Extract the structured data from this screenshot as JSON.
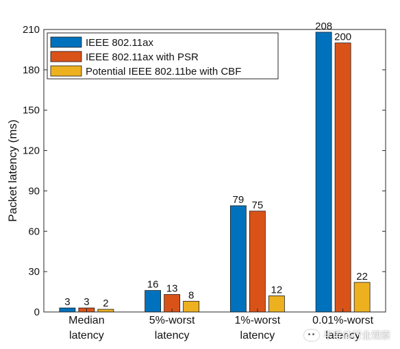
{
  "chart_data": {
    "type": "bar",
    "categories": [
      [
        "Median",
        "latency"
      ],
      [
        "5%-worst",
        "latency"
      ],
      [
        "1%-worst",
        "latency"
      ],
      [
        "0.01%-worst",
        "latency"
      ]
    ],
    "series": [
      {
        "name": "IEEE 802.11ax",
        "color": "#0072BD",
        "values": [
          3,
          16,
          79,
          208
        ]
      },
      {
        "name": "IEEE 802.11ax with PSR",
        "color": "#D95319",
        "values": [
          3,
          13,
          75,
          200
        ]
      },
      {
        "name": "Potential IEEE 802.11be with CBF",
        "color": "#EDB120",
        "values": [
          2,
          8,
          12,
          22
        ]
      }
    ],
    "data_labels": [
      [
        "3",
        "16",
        "79",
        "208"
      ],
      [
        "3",
        "13",
        "75",
        "200"
      ],
      [
        "2",
        "8",
        "12",
        "22"
      ]
    ],
    "ylabel": "Packet latency (ms)",
    "xlabel": "",
    "ylim": [
      0,
      210
    ],
    "yticks": [
      0,
      30,
      60,
      90,
      120,
      150,
      180,
      210
    ],
    "grid": false,
    "legend_position": "top-left"
  },
  "watermark": {
    "text": "半导体行业观察",
    "icon": "wechat-icon"
  }
}
